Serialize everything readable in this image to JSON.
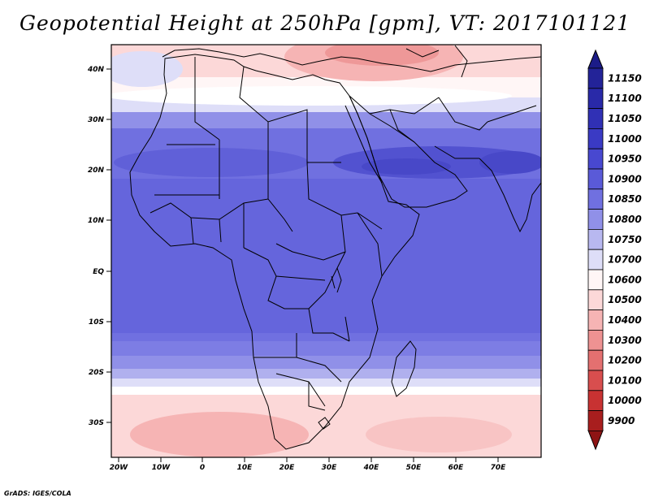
{
  "title": "Geopotential Height at 250hPa [gpm], VT: 2017101121",
  "credit": "GrADS: IGES/COLA",
  "map": {
    "lat_ticks": [
      "40N",
      "30N",
      "20N",
      "10N",
      "EQ",
      "10S",
      "20S",
      "30S"
    ],
    "lon_ticks": [
      "20W",
      "10W",
      "0",
      "10E",
      "20E",
      "30E",
      "40E",
      "50E",
      "60E",
      "70E"
    ],
    "extent": {
      "lon": [
        -22,
        80
      ],
      "lat": [
        -37,
        45
      ]
    }
  },
  "colorbar": {
    "levels": [
      "11150",
      "11100",
      "11050",
      "11000",
      "10950",
      "10900",
      "10850",
      "10800",
      "10750",
      "10700",
      "10600",
      "10500",
      "10400",
      "10300",
      "10200",
      "10100",
      "10000",
      "9900"
    ],
    "colors": [
      "#232398",
      "#2929a8",
      "#3030b5",
      "#3a3ac4",
      "#4848d0",
      "#5a5ad8",
      "#7070e0",
      "#9090e8",
      "#b8b8f0",
      "#dedef8",
      "#fff6f6",
      "#fcd8d8",
      "#f6b4b4",
      "#ee9292",
      "#e47070",
      "#d84e4e",
      "#c83232",
      "#a81e1e"
    ],
    "top_arrow_color": "#1c1c88",
    "bottom_arrow_color": "#8e1414"
  },
  "chart_data": {
    "type": "heatmap",
    "title": "Geopotential Height at 250hPa [gpm], VT: 2017101121",
    "variable": "Geopotential Height",
    "level": "250hPa",
    "units": "gpm",
    "valid_time": "2017101121",
    "region": "Africa",
    "contour_levels": [
      9900,
      10000,
      10100,
      10200,
      10300,
      10400,
      10500,
      10600,
      10700,
      10750,
      10800,
      10850,
      10900,
      10950,
      11000,
      11050,
      11100,
      11150
    ],
    "zonal_bands": [
      {
        "lat": 42,
        "value": 10650
      },
      {
        "lat": 38,
        "value": 10720
      },
      {
        "lat": 33,
        "value": 10860
      },
      {
        "lat": 28,
        "value": 10920
      },
      {
        "lat": 22,
        "value": 10980
      },
      {
        "lat": 15,
        "value": 10960
      },
      {
        "lat": 5,
        "value": 10930
      },
      {
        "lat": -5,
        "value": 10920
      },
      {
        "lat": -12,
        "value": 10910
      },
      {
        "lat": -18,
        "value": 10850
      },
      {
        "lat": -23,
        "value": 10780
      },
      {
        "lat": -27,
        "value": 10700
      },
      {
        "lat": -32,
        "value": 10620
      },
      {
        "lat": -36,
        "value": 10620
      }
    ]
  }
}
